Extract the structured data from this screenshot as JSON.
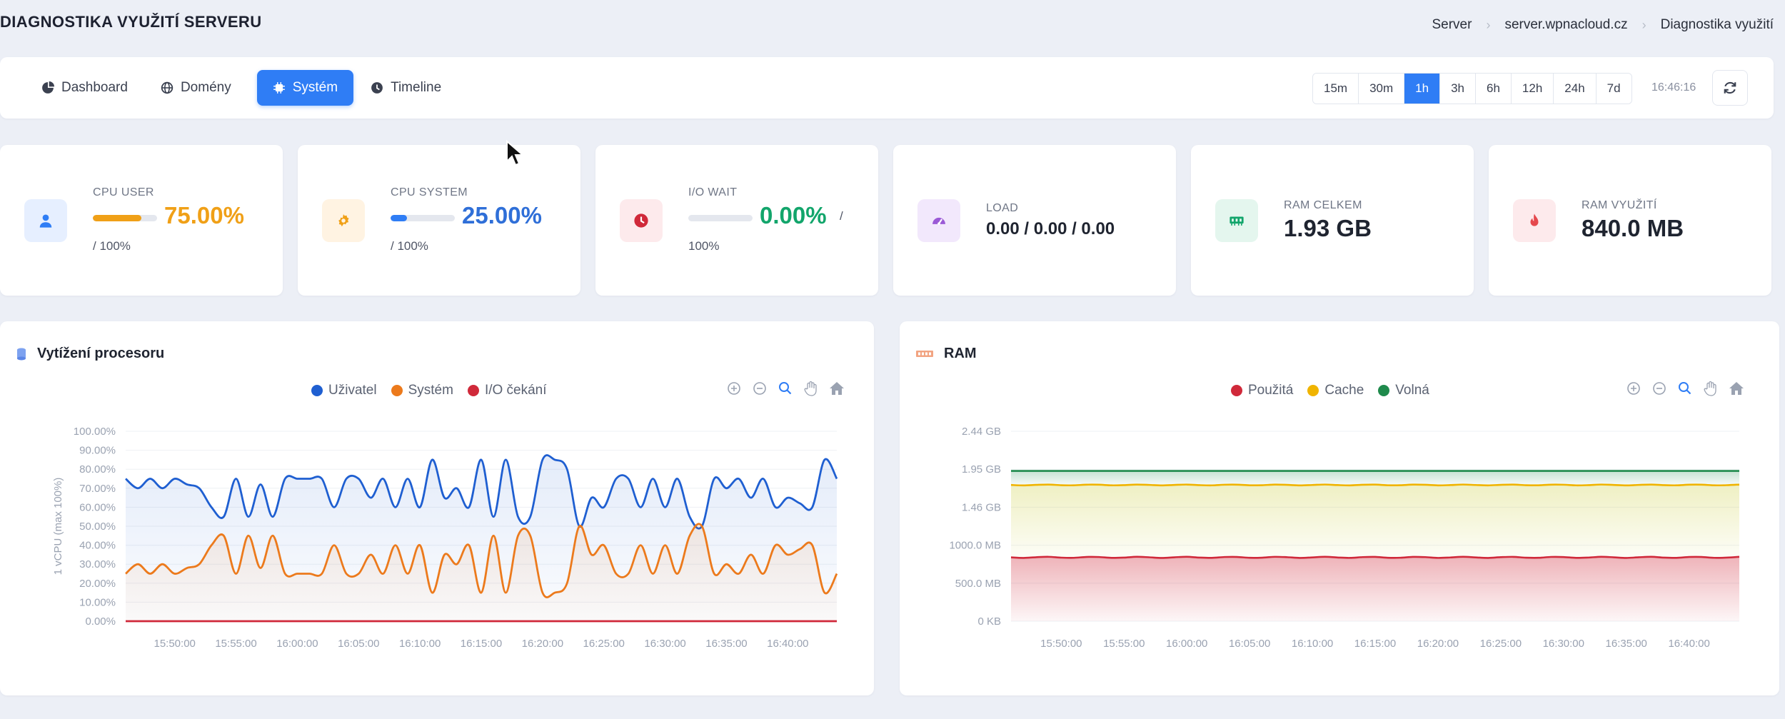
{
  "header": {
    "title": "DIAGNOSTIKA VYUŽITÍ SERVERU",
    "breadcrumb": [
      "Server",
      "server.wpnacloud.cz",
      "Diagnostika využití"
    ]
  },
  "nav": {
    "tabs": [
      {
        "label": "Dashboard",
        "icon": "pie-chart-icon",
        "active": false
      },
      {
        "label": "Domény",
        "icon": "globe-icon",
        "active": false
      },
      {
        "label": "Systém",
        "icon": "cpu-icon",
        "active": true
      },
      {
        "label": "Timeline",
        "icon": "clock-icon",
        "active": false
      }
    ],
    "ranges": [
      "15m",
      "30m",
      "1h",
      "3h",
      "6h",
      "12h",
      "24h",
      "7d"
    ],
    "active_range": "1h",
    "time": "16:46:16"
  },
  "stats": {
    "cpu_user": {
      "label": "CPU USER",
      "value": "75.00%",
      "of": "/ 100%",
      "fill": 0.75,
      "color": "#f0a017"
    },
    "cpu_system": {
      "label": "CPU SYSTEM",
      "value": "25.00%",
      "of": "/ 100%",
      "fill": 0.25,
      "color": "#2f7df5"
    },
    "io_wait": {
      "label": "I/O WAIT",
      "value": "0.00%",
      "slash": "/",
      "of": "100%",
      "fill": 0.0,
      "color": "#12a56b"
    },
    "load": {
      "label": "LOAD",
      "value": "0.00 / 0.00 / 0.00"
    },
    "ram_total": {
      "label": "RAM CELKEM",
      "value": "1.93 GB"
    },
    "ram_used": {
      "label": "RAM VYUŽITÍ",
      "value": "840.0 MB"
    }
  },
  "cpu_panel": {
    "title": "Vytížení procesoru",
    "legend": [
      "Uživatel",
      "Systém",
      "I/O čekání"
    ]
  },
  "ram_panel": {
    "title": "RAM",
    "legend": [
      "Použitá",
      "Cache",
      "Volná"
    ]
  },
  "chart_data": [
    {
      "type": "line",
      "ylabel": "1 vCPU (max 100%)",
      "ylim": [
        0,
        100
      ],
      "yticks": [
        "0.00%",
        "10.00%",
        "20.00%",
        "30.00%",
        "40.00%",
        "50.00%",
        "60.00%",
        "70.00%",
        "80.00%",
        "90.00%",
        "100.00%"
      ],
      "xticks": [
        "15:50:00",
        "15:55:00",
        "16:00:00",
        "16:05:00",
        "16:10:00",
        "16:15:00",
        "16:20:00",
        "16:25:00",
        "16:30:00",
        "16:35:00",
        "16:40:00"
      ],
      "x_minutes_from_1546": [
        0,
        1,
        2,
        3,
        4,
        5,
        6,
        7,
        8,
        9,
        10,
        11,
        12,
        13,
        14,
        15,
        16,
        17,
        18,
        19,
        20,
        21,
        22,
        23,
        24,
        25,
        26,
        27,
        28,
        29,
        30,
        31,
        32,
        33,
        34,
        35,
        36,
        37,
        38,
        39,
        40,
        41,
        42,
        43,
        44,
        45,
        46,
        47,
        48,
        49,
        50,
        51,
        52,
        53,
        54,
        55,
        56,
        57,
        58
      ],
      "series": [
        {
          "name": "Uživatel",
          "color": "#1f5fd1",
          "values": [
            75,
            70,
            75,
            70,
            75,
            72,
            70,
            60,
            55,
            75,
            55,
            72,
            55,
            75,
            75,
            75,
            75,
            60,
            75,
            75,
            65,
            75,
            60,
            75,
            60,
            85,
            65,
            70,
            60,
            85,
            55,
            85,
            55,
            55,
            85,
            85,
            80,
            50,
            65,
            60,
            75,
            75,
            60,
            75,
            60,
            75,
            55,
            50,
            75,
            70,
            75,
            65,
            75,
            60,
            65,
            62,
            60,
            85,
            75
          ]
        },
        {
          "name": "Systém",
          "color": "#ec7a1c",
          "values": [
            25,
            30,
            25,
            30,
            25,
            28,
            30,
            40,
            45,
            25,
            45,
            28,
            45,
            25,
            25,
            25,
            25,
            40,
            25,
            25,
            35,
            25,
            40,
            25,
            40,
            15,
            35,
            30,
            40,
            15,
            45,
            15,
            45,
            45,
            15,
            15,
            20,
            50,
            35,
            40,
            25,
            25,
            40,
            25,
            40,
            25,
            45,
            50,
            25,
            30,
            25,
            35,
            25,
            40,
            35,
            38,
            40,
            15,
            25
          ]
        },
        {
          "name": "I/O čekání",
          "color": "#d0293a",
          "values": [
            0,
            0,
            0,
            0,
            0,
            0,
            0,
            0,
            0,
            0,
            0,
            0,
            0,
            0,
            0,
            0,
            0,
            0,
            0,
            0,
            0,
            0,
            0,
            0,
            0,
            0,
            0,
            0,
            0,
            0,
            0,
            0,
            0,
            0,
            0,
            0,
            0,
            0,
            0,
            0,
            0,
            0,
            0,
            0,
            0,
            0,
            0,
            0,
            0,
            0,
            0,
            0,
            0,
            0,
            0,
            0,
            0,
            0,
            0
          ]
        }
      ]
    },
    {
      "type": "area",
      "ylim": [
        0,
        2.44
      ],
      "yticks": [
        "0 KB",
        "500.0 MB",
        "1000.0 MB",
        "1.46 GB",
        "1.95 GB",
        "2.44 GB"
      ],
      "xticks": [
        "15:50:00",
        "15:55:00",
        "16:00:00",
        "16:05:00",
        "16:10:00",
        "16:15:00",
        "16:20:00",
        "16:25:00",
        "16:30:00",
        "16:35:00",
        "16:40:00"
      ],
      "series": [
        {
          "name": "Použitá",
          "color": "#d0293a",
          "value_gb": 0.82
        },
        {
          "name": "Cache",
          "color": "#f0b400",
          "value_gb": 1.75
        },
        {
          "name": "Volná",
          "color": "#1f8a4c",
          "value_gb": 1.93
        }
      ]
    }
  ]
}
